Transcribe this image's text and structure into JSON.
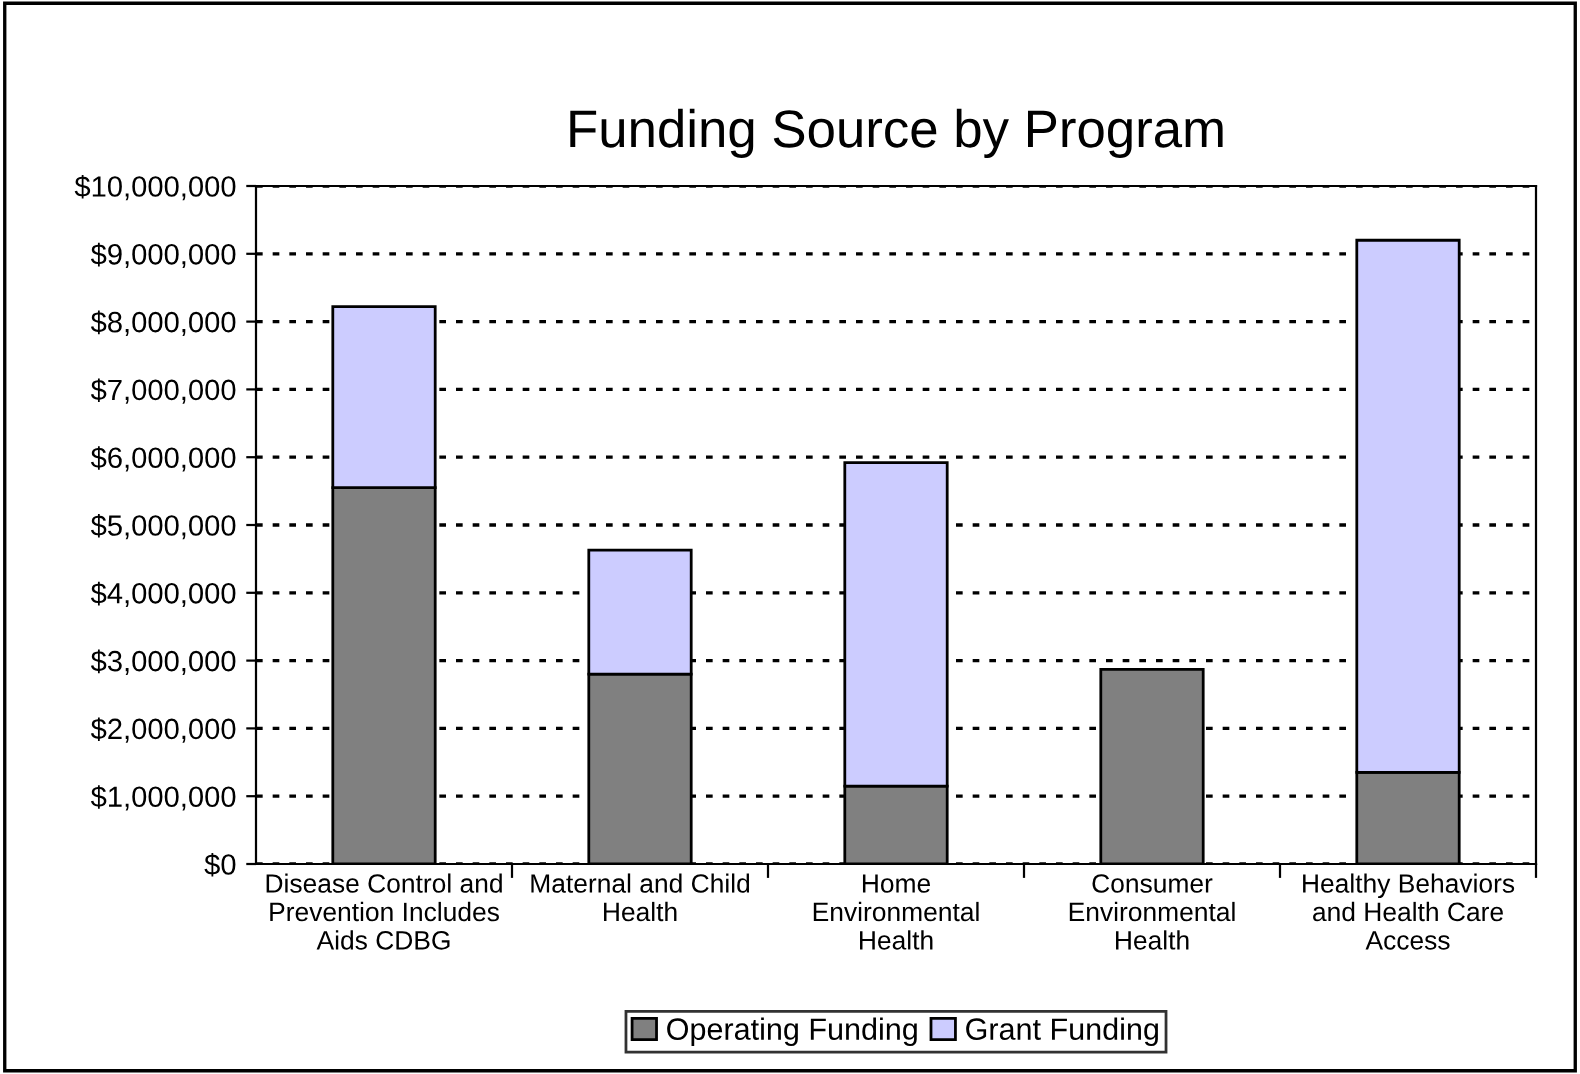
{
  "chart_data": {
    "type": "bar",
    "stacked": true,
    "title": "Funding Source by Program",
    "categories": [
      "Disease Control and\nPrevention Includes\nAids CDBG",
      "Maternal and Child\nHealth",
      "Home\nEnvironmental\nHealth",
      "Consumer\nEnvironmental\nHealth",
      "Healthy Behaviors\nand Health Care\nAccess"
    ],
    "series": [
      {
        "name": "Operating Funding",
        "color": "#808080",
        "values": [
          5550000,
          2800000,
          1150000,
          2870000,
          1350000
        ]
      },
      {
        "name": "Grant Funding",
        "color": "#ccccff",
        "values": [
          2670000,
          1830000,
          4770000,
          null,
          7850000
        ]
      }
    ],
    "ylim": [
      0,
      10000000
    ],
    "yticks": [
      {
        "value": 0,
        "label": "$0"
      },
      {
        "value": 1000000,
        "label": "$1,000,000"
      },
      {
        "value": 2000000,
        "label": "$2,000,000"
      },
      {
        "value": 3000000,
        "label": "$3,000,000"
      },
      {
        "value": 4000000,
        "label": "$4,000,000"
      },
      {
        "value": 5000000,
        "label": "$5,000,000"
      },
      {
        "value": 6000000,
        "label": "$6,000,000"
      },
      {
        "value": 7000000,
        "label": "$7,000,000"
      },
      {
        "value": 8000000,
        "label": "$8,000,000"
      },
      {
        "value": 9000000,
        "label": "$9,000,000"
      },
      {
        "value": 10000000,
        "label": "$10,000,000"
      }
    ],
    "grid": "y",
    "legend": "bottom"
  }
}
